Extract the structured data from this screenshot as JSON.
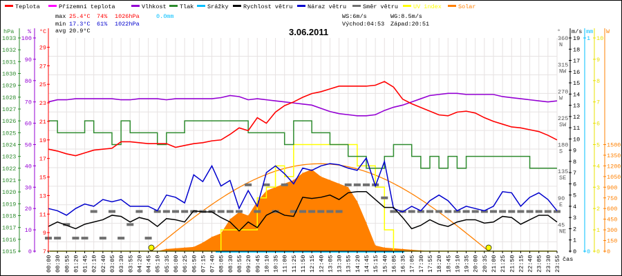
{
  "colors": {
    "temperature": "#ff0000",
    "ground_temperature": "#ff00ff",
    "humidity": "#9400d3",
    "pressure": "#2e8b2e",
    "rain": "#00bfff",
    "wind_speed": "#000000",
    "wind_gust": "#0000cd",
    "wind_dir": "#707070",
    "uv": "#ffff00",
    "solar": "#ff8000",
    "grid": "#e6e2e2"
  },
  "legend": [
    {
      "label": "Teplota",
      "color": "#ff0000"
    },
    {
      "label": "Přízemní teplota",
      "color": "#ff00ff"
    },
    {
      "label": "Vlhkost",
      "color": "#9400d3"
    },
    {
      "label": "Tlak",
      "color": "#2e8b2e"
    },
    {
      "label": "Srážky",
      "color": "#00bfff"
    },
    {
      "label": "Rychlost větru",
      "color": "#000000"
    },
    {
      "label": "Náraz větru",
      "color": "#0000cd"
    },
    {
      "label": "Směr větru",
      "color": "#707070"
    },
    {
      "label": "UV index",
      "color": "#ffff00"
    },
    {
      "label": "Solar",
      "color": "#ff8000"
    }
  ],
  "stats": {
    "max_label": "max",
    "max_temp": "25.4°C",
    "max_hum": "74%",
    "max_press": "1026hPa",
    "rain": "0.0mm",
    "min_label": "min",
    "min_temp": "17.3°C",
    "min_hum": "61%",
    "min_press": "1022hPa",
    "avg_label": "avg",
    "avg_temp": "20.9°C",
    "ws": "WS:6m/s",
    "wg": "WG:8.5m/s",
    "sunrise": "Východ:04:53",
    "sunset": "Západ:20:51"
  },
  "chart_data": {
    "type": "line",
    "title": "3.06.2011",
    "xlabel": "čas",
    "units": {
      "pressure": "hPa",
      "humidity": "%",
      "temperature": "°C",
      "direction": "°",
      "wind": "m/s",
      "rain": "mm",
      "solar": "W"
    },
    "axes": {
      "pressure_ticks": [
        "1015",
        "1016",
        "1017",
        "1018",
        "1019",
        "1020",
        "1021",
        "1022",
        "1023",
        "1024",
        "1025",
        "1026",
        "1027",
        "1028",
        "1029",
        "1030",
        "1031",
        "1032",
        "1033"
      ],
      "humidity_ticks": [
        "0",
        "10",
        "20",
        "30",
        "40",
        "50",
        "60",
        "70",
        "80",
        "90",
        "100"
      ],
      "temperature_ticks": [
        "7",
        "9",
        "11",
        "13",
        "15",
        "17",
        "19",
        "21",
        "23",
        "25",
        "27",
        "29"
      ],
      "direction_ticks": [
        {
          "v": "45",
          "c": "NE"
        },
        {
          "v": "90",
          "c": "E"
        },
        {
          "v": "135",
          "c": "SE"
        },
        {
          "v": "180",
          "c": "S"
        },
        {
          "v": "225",
          "c": "SW"
        },
        {
          "v": "270",
          "c": "W"
        },
        {
          "v": "315",
          "c": "NW"
        },
        {
          "v": "360",
          "c": "N"
        }
      ],
      "wind_ticks": [
        "0",
        "1",
        "2",
        "3",
        "4",
        "5",
        "6",
        "7",
        "8",
        "9",
        "10",
        "11",
        "12",
        "13",
        "14",
        "15",
        "16",
        "17",
        "18",
        "19"
      ],
      "rain_ticks": [
        "0",
        "1"
      ],
      "uv_ticks": [
        "0",
        "1",
        "2",
        "3",
        "4",
        "5",
        "6",
        "7",
        "8",
        "9",
        "10"
      ],
      "solar_ticks": [
        "0",
        "150",
        "300",
        "450",
        "600",
        "750",
        "900",
        "1050",
        "1200",
        "1350",
        "1500"
      ],
      "ylim_temperature": [
        7,
        30
      ],
      "ylim_humidity": [
        0,
        100
      ],
      "ylim_pressure": [
        1015,
        1033
      ],
      "ylim_wind": [
        0,
        19
      ],
      "ylim_direction": [
        0,
        360
      ],
      "ylim_uv": [
        0,
        10
      ],
      "ylim_solar": [
        0,
        3000
      ],
      "ylim_rain": [
        0,
        1
      ]
    },
    "x": [
      "00:00",
      "00:30",
      "00:55",
      "01:20",
      "01:45",
      "02:10",
      "02:40",
      "03:05",
      "03:30",
      "03:55",
      "04:20",
      "04:45",
      "05:10",
      "05:35",
      "06:00",
      "06:25",
      "06:50",
      "07:15",
      "07:40",
      "08:05",
      "08:30",
      "08:55",
      "09:20",
      "09:45",
      "10:10",
      "10:35",
      "11:00",
      "11:25",
      "11:50",
      "12:15",
      "12:40",
      "13:05",
      "13:30",
      "13:55",
      "14:20",
      "14:45",
      "15:15",
      "15:40",
      "16:05",
      "16:35",
      "17:05",
      "17:30",
      "17:55",
      "18:20",
      "18:45",
      "19:10",
      "19:35",
      "20:00",
      "20:35",
      "21:00",
      "21:25",
      "21:50",
      "22:15",
      "22:40",
      "23:05",
      "23:30",
      "23:55"
    ],
    "series": [
      {
        "name": "Teplota",
        "key": "temperature",
        "values": [
          18.0,
          17.8,
          17.5,
          17.3,
          17.6,
          17.9,
          18.0,
          18.1,
          18.8,
          18.8,
          18.7,
          18.6,
          18.6,
          18.6,
          18.2,
          18.4,
          18.6,
          18.7,
          18.9,
          19.0,
          19.6,
          20.3,
          20.0,
          21.4,
          20.8,
          22.0,
          22.7,
          23.1,
          23.6,
          24.0,
          24.2,
          24.5,
          24.8,
          24.8,
          24.8,
          24.8,
          24.9,
          25.3,
          24.7,
          23.4,
          22.9,
          22.5,
          22.1,
          21.7,
          21.6,
          22.0,
          22.1,
          21.9,
          21.4,
          21.0,
          20.7,
          20.4,
          20.3,
          20.1,
          19.9,
          19.5,
          19.0
        ]
      },
      {
        "name": "Vlhkost",
        "key": "humidity",
        "values": [
          70,
          71,
          71,
          71.5,
          71.5,
          71.5,
          71.5,
          71.5,
          71,
          71,
          71.5,
          71.5,
          71.5,
          71,
          71.5,
          71.5,
          71.5,
          71.5,
          71.5,
          72,
          73,
          72.5,
          71,
          71.5,
          71,
          70.5,
          70,
          69.5,
          69,
          68.5,
          67,
          65.5,
          64.5,
          64,
          63.5,
          63.5,
          64,
          66,
          67.5,
          68.5,
          70,
          71.5,
          73,
          73.5,
          74,
          74,
          73.5,
          73.5,
          73.5,
          73.5,
          72.5,
          72,
          71.5,
          71,
          70.5,
          70,
          70.5
        ]
      },
      {
        "name": "Tlak",
        "key": "pressure",
        "values": [
          1026,
          1025,
          1025,
          1025,
          1026,
          1025,
          1025,
          1024,
          1026,
          1025,
          1025,
          1025,
          1024,
          1025,
          1025,
          1026,
          1026,
          1026,
          1026,
          1026,
          1026,
          1026,
          1025,
          1025,
          1025,
          1025,
          1024,
          1026,
          1026,
          1025,
          1025,
          1024,
          1024,
          1023,
          1023,
          1022,
          1022,
          1023,
          1024,
          1024,
          1023,
          1022,
          1023,
          1022,
          1023,
          1022,
          1023,
          1023,
          1023,
          1023,
          1023,
          1023,
          1023,
          1022,
          1022,
          1022,
          1022
        ]
      },
      {
        "name": "Rychlost větru",
        "key": "wind_speed",
        "values": [
          2.2,
          2.6,
          2.3,
          2.0,
          2.4,
          2.6,
          2.8,
          3.2,
          3.1,
          2.6,
          3.0,
          2.8,
          2.2,
          2.9,
          2.8,
          2.6,
          3.6,
          3.5,
          3.5,
          3.0,
          2.6,
          1.8,
          2.6,
          2.1,
          3.2,
          3.6,
          3.2,
          3.1,
          4.8,
          4.7,
          4.8,
          5.0,
          4.6,
          5.2,
          5.3,
          5.3,
          4.6,
          3.9,
          3.9,
          3.0,
          2.0,
          2.3,
          2.8,
          2.4,
          2.2,
          2.6,
          2.8,
          2.8,
          2.5,
          2.6,
          3.1,
          3.0,
          2.4,
          2.8,
          3.2,
          3.2,
          2.6
        ]
      },
      {
        "name": "Náraz větru",
        "key": "wind_gust",
        "values": [
          3.8,
          3.6,
          3.2,
          3.8,
          4.2,
          4.0,
          4.6,
          4.4,
          4.6,
          4.0,
          4.0,
          4.0,
          3.6,
          5.0,
          4.8,
          4.3,
          6.8,
          6.2,
          7.6,
          5.8,
          6.3,
          3.8,
          5.4,
          4.0,
          7.0,
          7.6,
          6.9,
          6.0,
          7.4,
          7.2,
          7.6,
          7.8,
          7.7,
          7.4,
          7.2,
          8.3,
          5.8,
          8.0,
          3.8,
          3.5,
          4.0,
          3.6,
          4.5,
          5.0,
          4.5,
          3.6,
          4.0,
          3.8,
          3.6,
          4.0,
          5.3,
          5.2,
          4.0,
          4.8,
          5.2,
          4.6,
          3.6
        ]
      },
      {
        "name": "Směr větru",
        "key": "wind_dir",
        "values": [
          22,
          22,
          45,
          22,
          22,
          67,
          22,
          67,
          22,
          45,
          67,
          22,
          67,
          67,
          67,
          67,
          67,
          67,
          67,
          67,
          67,
          67,
          112,
          67,
          112,
          67,
          112,
          67,
          67,
          67,
          67,
          67,
          67,
          112,
          112,
          112,
          112,
          90,
          67,
          67,
          67,
          67,
          67,
          67,
          67,
          67,
          67,
          67,
          67,
          67,
          67,
          67,
          67,
          67,
          67,
          67,
          67
        ]
      },
      {
        "name": "UV index",
        "key": "uv",
        "values": [
          0,
          0,
          0,
          0,
          0,
          0,
          0,
          0,
          0,
          0,
          0,
          0,
          0,
          0,
          0,
          0,
          0,
          0,
          0,
          1,
          1,
          1,
          1,
          2.5,
          3,
          4,
          3.5,
          5,
          5,
          5,
          5,
          5,
          5,
          5,
          4,
          4,
          3,
          1,
          0,
          0,
          0,
          0,
          0,
          0,
          0,
          0,
          0,
          0,
          0,
          0,
          0,
          0,
          0,
          0,
          0,
          0,
          0
        ]
      },
      {
        "name": "Solar",
        "key": "solar",
        "values": [
          0,
          0,
          0,
          0,
          0,
          0,
          0,
          0,
          0,
          0,
          0,
          0,
          0,
          30,
          40,
          50,
          60,
          120,
          200,
          250,
          450,
          550,
          500,
          700,
          850,
          900,
          950,
          1000,
          1100,
          1150,
          1050,
          1000,
          950,
          900,
          700,
          400,
          80,
          50,
          40,
          30,
          20,
          10,
          0,
          0,
          0,
          0,
          0,
          0,
          0,
          0,
          0,
          0,
          0,
          0,
          0,
          0,
          0
        ]
      },
      {
        "name": "Srážky",
        "key": "rain",
        "values": [
          0,
          0,
          0,
          0,
          0,
          0,
          0,
          0,
          0,
          0,
          0,
          0,
          0,
          0,
          0,
          0,
          0,
          0,
          0,
          0,
          0,
          0,
          0,
          0,
          0,
          0,
          0,
          0,
          0,
          0,
          0,
          0,
          0,
          0,
          0,
          0,
          0,
          0,
          0,
          0,
          0,
          0,
          0,
          0,
          0,
          0,
          0,
          0,
          0,
          0,
          0,
          0,
          0,
          0,
          0,
          0,
          0
        ]
      }
    ],
    "solar_theoretical_peak": 1230
  }
}
